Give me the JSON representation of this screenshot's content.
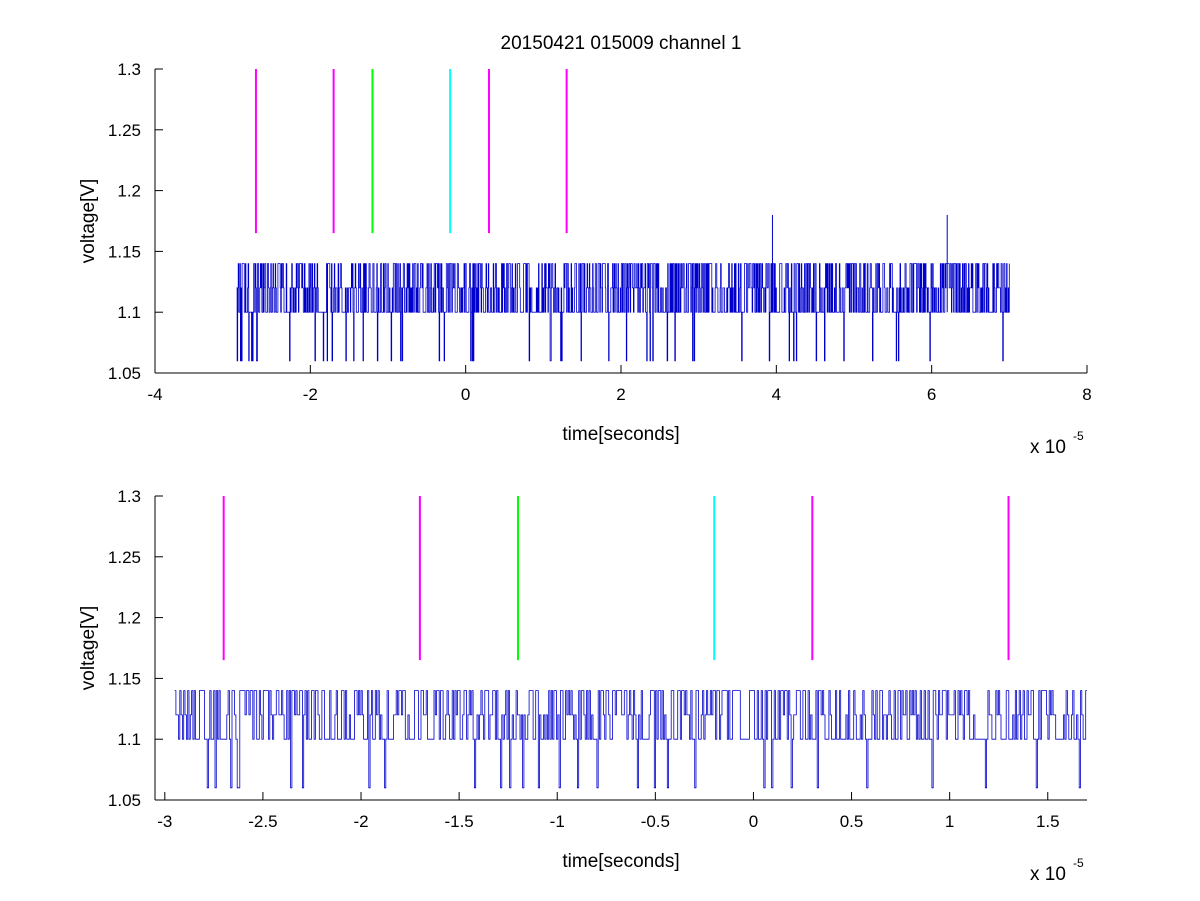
{
  "chart_data": [
    {
      "type": "line",
      "title": "20150421 015009 channel 1",
      "xlabel": "time[seconds]",
      "ylabel": "voltage[V]",
      "x_scale_label": "x 10",
      "x_scale_exponent": "-5",
      "xlim": [
        -4,
        8
      ],
      "ylim": [
        1.05,
        1.3
      ],
      "x_ticks": [
        "-4",
        "-2",
        "0",
        "2",
        "4",
        "6",
        "8"
      ],
      "y_ticks": [
        "1.05",
        "1.1",
        "1.15",
        "1.2",
        "1.25",
        "1.3"
      ],
      "grid": false,
      "trace_color": "#0000cc",
      "trace_x_range": [
        -2.95,
        7.0
      ],
      "trace_levels": [
        1.06,
        1.1,
        1.12,
        1.14
      ],
      "trace_spike_points": [
        {
          "x": 3.95,
          "y": 1.18
        },
        {
          "x": 6.2,
          "y": 1.18
        }
      ],
      "markers": [
        {
          "x": -2.7,
          "y_range": [
            1.165,
            1.3
          ],
          "color": "#ff00ff"
        },
        {
          "x": -1.7,
          "y_range": [
            1.165,
            1.3
          ],
          "color": "#ff00ff"
        },
        {
          "x": -1.2,
          "y_range": [
            1.165,
            1.3
          ],
          "color": "#00ff00"
        },
        {
          "x": -0.2,
          "y_range": [
            1.165,
            1.3
          ],
          "color": "#00ffff"
        },
        {
          "x": 0.3,
          "y_range": [
            1.165,
            1.3
          ],
          "color": "#ff00ff"
        },
        {
          "x": 1.3,
          "y_range": [
            1.165,
            1.3
          ],
          "color": "#ff00ff"
        }
      ]
    },
    {
      "type": "line",
      "title": "",
      "xlabel": "time[seconds]",
      "ylabel": "voltage[V]",
      "x_scale_label": "x 10",
      "x_scale_exponent": "-5",
      "xlim": [
        -3.05,
        1.7
      ],
      "ylim": [
        1.05,
        1.3
      ],
      "x_ticks": [
        "-3",
        "-2.5",
        "-2",
        "-1.5",
        "-1",
        "-0.5",
        "0",
        "0.5",
        "1",
        "1.5"
      ],
      "y_ticks": [
        "1.05",
        "1.1",
        "1.15",
        "1.2",
        "1.25",
        "1.3"
      ],
      "grid": false,
      "trace_color": "#0000cc",
      "trace_x_range": [
        -2.95,
        1.7
      ],
      "trace_levels": [
        1.06,
        1.1,
        1.12,
        1.14
      ],
      "markers": [
        {
          "x": -2.7,
          "y_range": [
            1.165,
            1.3
          ],
          "color": "#ff00ff"
        },
        {
          "x": -1.7,
          "y_range": [
            1.165,
            1.3
          ],
          "color": "#ff00ff"
        },
        {
          "x": -1.2,
          "y_range": [
            1.165,
            1.3
          ],
          "color": "#00ff00"
        },
        {
          "x": -0.2,
          "y_range": [
            1.165,
            1.3
          ],
          "color": "#00ffff"
        },
        {
          "x": 0.3,
          "y_range": [
            1.165,
            1.3
          ],
          "color": "#ff00ff"
        },
        {
          "x": 1.3,
          "y_range": [
            1.165,
            1.3
          ],
          "color": "#ff00ff"
        }
      ]
    }
  ]
}
